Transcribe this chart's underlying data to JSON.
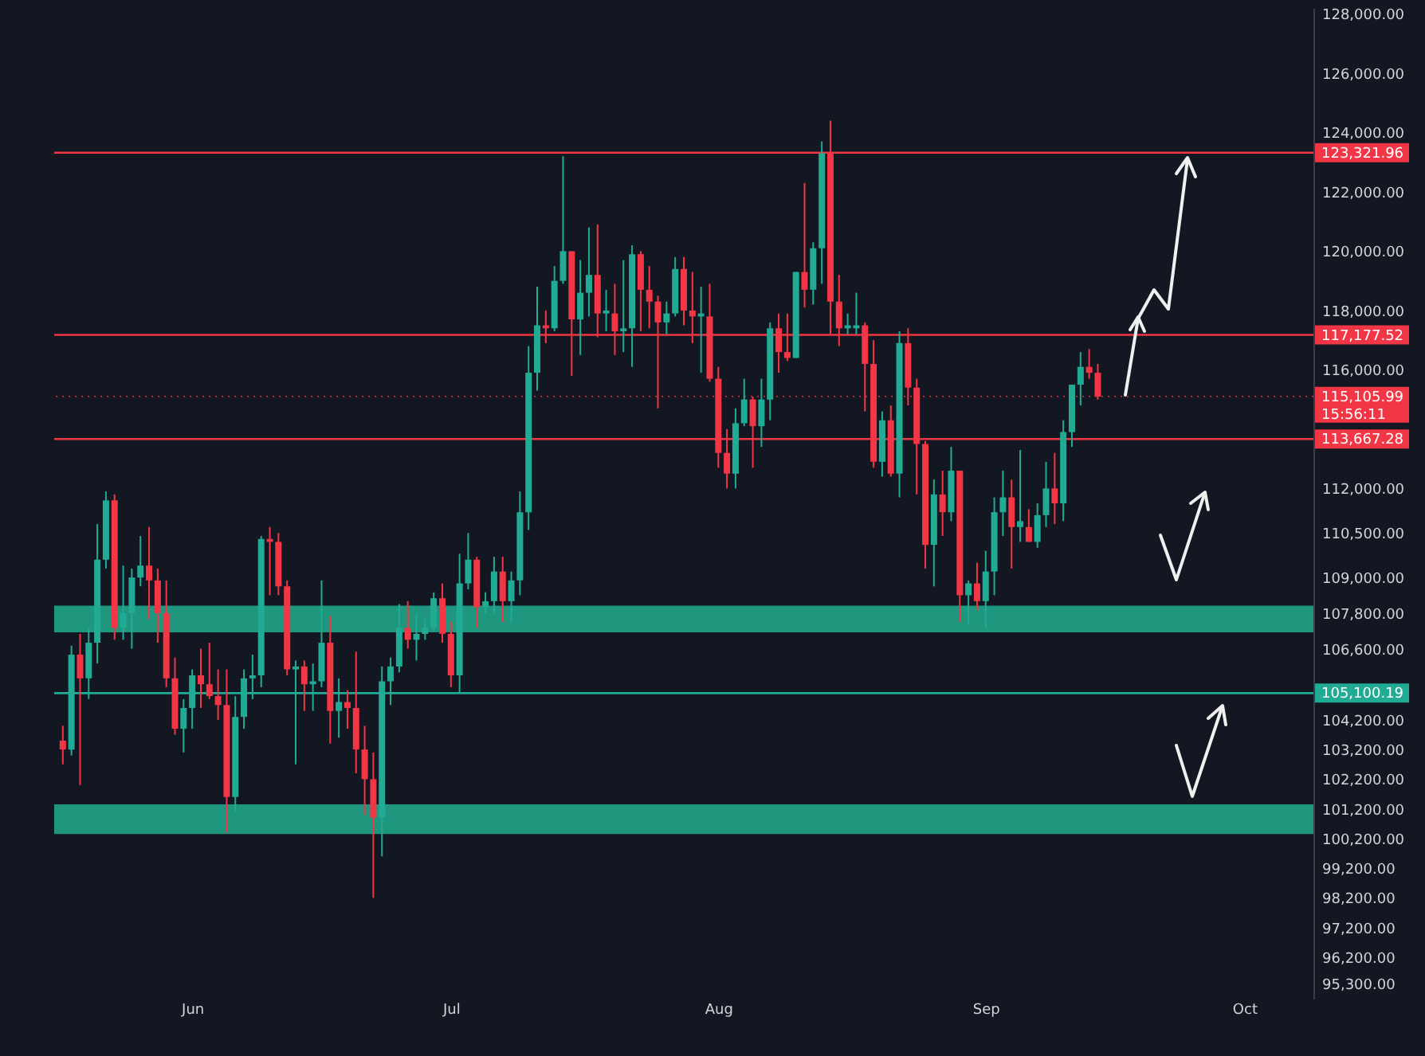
{
  "chart_data": {
    "type": "candlestick",
    "x": [
      "--05-17",
      "--05-18",
      "--05-19",
      "--05-20",
      "--05-21",
      "--05-22",
      "--05-23",
      "--05-24",
      "--05-25",
      "--05-26",
      "--05-27",
      "--05-28",
      "--05-29",
      "--05-30",
      "--05-31",
      "--06-01",
      "--06-02",
      "--06-03",
      "--06-04",
      "--06-05",
      "--06-06",
      "--06-07",
      "--06-08",
      "--06-09",
      "--06-10",
      "--06-11",
      "--06-12",
      "--06-13",
      "--06-14",
      "--06-15",
      "--06-16",
      "--06-17",
      "--06-18",
      "--06-19",
      "--06-20",
      "--06-21",
      "--06-22",
      "--06-23",
      "--06-24",
      "--06-25",
      "--06-26",
      "--06-27",
      "--06-28",
      "--06-29",
      "--06-30",
      "--07-01",
      "--07-02",
      "--07-03",
      "--07-04",
      "--07-05",
      "--07-06",
      "--07-07",
      "--07-08",
      "--07-09",
      "--07-10",
      "--07-11",
      "--07-12",
      "--07-13",
      "--07-14",
      "--07-15",
      "--07-16",
      "--07-17",
      "--07-18",
      "--07-19",
      "--07-20",
      "--07-21",
      "--07-22",
      "--07-23",
      "--07-24",
      "--07-25",
      "--07-26",
      "--07-27",
      "--07-28",
      "--07-29",
      "--07-30",
      "--07-31",
      "--08-01",
      "--08-02",
      "--08-03",
      "--08-04",
      "--08-05",
      "--08-06",
      "--08-07",
      "--08-08",
      "--08-09",
      "--08-10",
      "--08-11",
      "--08-12",
      "--08-13",
      "--08-14",
      "--08-15",
      "--08-16",
      "--08-17",
      "--08-18",
      "--08-19",
      "--08-20",
      "--08-21",
      "--08-22",
      "--08-23",
      "--08-24",
      "--08-25",
      "--08-26",
      "--08-27",
      "--08-28",
      "--08-29",
      "--08-30",
      "--08-31",
      "--09-01",
      "--09-02",
      "--09-03",
      "--09-04",
      "--09-05",
      "--09-06",
      "--09-07",
      "--09-08",
      "--09-09",
      "--09-10",
      "--09-11",
      "--09-12",
      "--09-13",
      "--09-14"
    ],
    "ohlc": [
      [
        103500,
        104000,
        102700,
        103200
      ],
      [
        103200,
        106700,
        103000,
        106400
      ],
      [
        106400,
        107100,
        102000,
        105600
      ],
      [
        105600,
        107300,
        104900,
        106800
      ],
      [
        106800,
        110800,
        106100,
        109600
      ],
      [
        109600,
        111900,
        109300,
        111600
      ],
      [
        111600,
        111800,
        106900,
        107300
      ],
      [
        107300,
        109400,
        106900,
        107800
      ],
      [
        107800,
        109300,
        106600,
        109000
      ],
      [
        109000,
        110400,
        108700,
        109400
      ],
      [
        109400,
        110700,
        107600,
        108900
      ],
      [
        108900,
        109300,
        106800,
        107800
      ],
      [
        107800,
        108900,
        105300,
        105600
      ],
      [
        105600,
        106300,
        103700,
        103900
      ],
      [
        103900,
        104900,
        103100,
        104600
      ],
      [
        104600,
        105900,
        103900,
        105700
      ],
      [
        105700,
        106600,
        104600,
        105400
      ],
      [
        105400,
        106800,
        104900,
        105000
      ],
      [
        105000,
        105900,
        104200,
        104700
      ],
      [
        104700,
        105900,
        100400,
        101600
      ],
      [
        101600,
        105000,
        101100,
        104300
      ],
      [
        104300,
        105900,
        103900,
        105600
      ],
      [
        105600,
        106400,
        104900,
        105700
      ],
      [
        105700,
        110400,
        105300,
        110300
      ],
      [
        110300,
        110700,
        108400,
        110200
      ],
      [
        110200,
        110500,
        108400,
        108700
      ],
      [
        108700,
        108900,
        105700,
        105900
      ],
      [
        105900,
        106200,
        102700,
        106000
      ],
      [
        106000,
        106200,
        104500,
        105400
      ],
      [
        105400,
        106100,
        104500,
        105500
      ],
      [
        105500,
        108900,
        105300,
        106800
      ],
      [
        106800,
        107700,
        103400,
        104500
      ],
      [
        104500,
        105600,
        103600,
        104800
      ],
      [
        104800,
        105200,
        103900,
        104600
      ],
      [
        104600,
        106500,
        102400,
        103200
      ],
      [
        103200,
        104000,
        101000,
        102200
      ],
      [
        102200,
        103100,
        98200,
        100900
      ],
      [
        100900,
        106000,
        99600,
        105500
      ],
      [
        105500,
        106300,
        104700,
        106000
      ],
      [
        106000,
        108100,
        105800,
        107300
      ],
      [
        107300,
        108200,
        106600,
        106900
      ],
      [
        106900,
        107800,
        106200,
        107100
      ],
      [
        107100,
        107600,
        106900,
        107300
      ],
      [
        107300,
        108500,
        107200,
        108300
      ],
      [
        108300,
        108800,
        106800,
        107100
      ],
      [
        107100,
        107500,
        105300,
        105700
      ],
      [
        105700,
        109800,
        105100,
        108800
      ],
      [
        108800,
        110500,
        108600,
        109600
      ],
      [
        109600,
        109700,
        107300,
        108000
      ],
      [
        108000,
        108500,
        107800,
        108200
      ],
      [
        108200,
        109700,
        107800,
        109200
      ],
      [
        109200,
        109700,
        107500,
        108200
      ],
      [
        108200,
        109200,
        107500,
        108900
      ],
      [
        108900,
        111900,
        108400,
        111200
      ],
      [
        111200,
        116800,
        110600,
        115900
      ],
      [
        115900,
        118800,
        115300,
        117500
      ],
      [
        117500,
        118000,
        116900,
        117400
      ],
      [
        117400,
        119500,
        117300,
        119000
      ],
      [
        119000,
        123200,
        118900,
        120000
      ],
      [
        120000,
        120000,
        115800,
        117700
      ],
      [
        117700,
        119700,
        116500,
        118600
      ],
      [
        118600,
        120800,
        117800,
        119200
      ],
      [
        119200,
        120900,
        117100,
        117900
      ],
      [
        117900,
        118700,
        117300,
        118000
      ],
      [
        117900,
        118900,
        116500,
        117300
      ],
      [
        117300,
        119700,
        116600,
        117400
      ],
      [
        117400,
        120200,
        116100,
        119900
      ],
      [
        119900,
        120000,
        117300,
        118700
      ],
      [
        118700,
        119500,
        117400,
        118300
      ],
      [
        118300,
        118500,
        114700,
        117600
      ],
      [
        117600,
        118300,
        117200,
        117900
      ],
      [
        117900,
        119800,
        117800,
        119400
      ],
      [
        119400,
        119800,
        117500,
        118000
      ],
      [
        118000,
        119300,
        116900,
        117800
      ],
      [
        117800,
        118800,
        115900,
        117900
      ],
      [
        117800,
        118900,
        115600,
        115700
      ],
      [
        115700,
        116100,
        112700,
        113200
      ],
      [
        113200,
        114000,
        112000,
        112500
      ],
      [
        112500,
        114700,
        112000,
        114200
      ],
      [
        114200,
        115700,
        114100,
        115000
      ],
      [
        115000,
        115100,
        112700,
        114100
      ],
      [
        114100,
        115700,
        113400,
        115000
      ],
      [
        115000,
        117600,
        114300,
        117400
      ],
      [
        117400,
        117900,
        115900,
        116600
      ],
      [
        116600,
        117900,
        116300,
        116400
      ],
      [
        116400,
        119300,
        116400,
        119300
      ],
      [
        119300,
        122300,
        118100,
        118700
      ],
      [
        118700,
        120300,
        118200,
        120100
      ],
      [
        120100,
        123700,
        118900,
        123300
      ],
      [
        123300,
        124400,
        117200,
        118300
      ],
      [
        118300,
        119200,
        116800,
        117400
      ],
      [
        117400,
        117900,
        117200,
        117500
      ],
      [
        117400,
        118600,
        117200,
        117500
      ],
      [
        117500,
        117600,
        114600,
        116200
      ],
      [
        116200,
        117000,
        112700,
        112900
      ],
      [
        112900,
        114600,
        112400,
        114300
      ],
      [
        114300,
        114800,
        112400,
        112500
      ],
      [
        112500,
        117300,
        111700,
        116900
      ],
      [
        116900,
        117400,
        114800,
        115400
      ],
      [
        115400,
        115700,
        111800,
        113500
      ],
      [
        113500,
        113600,
        109300,
        110100
      ],
      [
        110100,
        112300,
        108700,
        111800
      ],
      [
        111800,
        112600,
        110400,
        111200
      ],
      [
        111200,
        113400,
        110900,
        112600
      ],
      [
        112600,
        112600,
        107500,
        108400
      ],
      [
        108400,
        108900,
        107400,
        108800
      ],
      [
        108800,
        109500,
        107900,
        108200
      ],
      [
        108200,
        109900,
        107300,
        109200
      ],
      [
        109200,
        111700,
        108400,
        111200
      ],
      [
        111200,
        112600,
        110400,
        111700
      ],
      [
        111700,
        112300,
        109300,
        110700
      ],
      [
        110700,
        113300,
        110200,
        110900
      ],
      [
        110700,
        111300,
        110200,
        110200
      ],
      [
        110200,
        111500,
        110000,
        111100
      ],
      [
        111100,
        112900,
        110700,
        112000
      ],
      [
        112000,
        113200,
        110800,
        111500
      ],
      [
        111500,
        114300,
        110900,
        113900
      ],
      [
        113900,
        115500,
        113400,
        115500
      ],
      [
        115500,
        116600,
        114800,
        116100
      ],
      [
        116100,
        116700,
        115700,
        115900
      ],
      [
        115900,
        116200,
        115000,
        115100
      ]
    ],
    "colors": [
      "#f23645",
      "#22ab94",
      "#f23645",
      "#22ab94",
      "#22ab94",
      "#22ab94",
      "#f23645",
      "#22ab94",
      "#22ab94",
      "#22ab94",
      "#f23645",
      "#f23645",
      "#f23645",
      "#f23645",
      "#22ab94",
      "#22ab94",
      "#f23645",
      "#f23645",
      "#f23645",
      "#f23645",
      "#22ab94",
      "#22ab94",
      "#22ab94",
      "#22ab94",
      "#f23645",
      "#f23645",
      "#f23645",
      "#22ab94",
      "#f23645",
      "#22ab94",
      "#22ab94",
      "#f23645",
      "#22ab94",
      "#f23645",
      "#f23645",
      "#f23645",
      "#f23645",
      "#22ab94",
      "#22ab94",
      "#22ab94",
      "#f23645",
      "#22ab94",
      "#22ab94",
      "#22ab94",
      "#f23645",
      "#f23645",
      "#22ab94",
      "#22ab94",
      "#f23645",
      "#22ab94",
      "#22ab94",
      "#f23645",
      "#22ab94",
      "#22ab94",
      "#22ab94",
      "#22ab94",
      "#f23645",
      "#22ab94",
      "#22ab94",
      "#f23645",
      "#22ab94",
      "#22ab94",
      "#f23645",
      "#22ab94",
      "#f23645",
      "#22ab94",
      "#22ab94",
      "#f23645",
      "#f23645",
      "#f23645",
      "#22ab94",
      "#22ab94",
      "#f23645",
      "#f23645",
      "#22ab94",
      "#f23645",
      "#f23645",
      "#f23645",
      "#22ab94",
      "#22ab94",
      "#f23645",
      "#22ab94",
      "#22ab94",
      "#f23645",
      "#f23645",
      "#22ab94",
      "#f23645",
      "#22ab94",
      "#22ab94",
      "#f23645",
      "#f23645",
      "#22ab94",
      "#22ab94",
      "#f23645",
      "#f23645",
      "#22ab94",
      "#f23645",
      "#22ab94",
      "#f23645",
      "#f23645",
      "#f23645",
      "#22ab94",
      "#f23645",
      "#22ab94",
      "#f23645",
      "#22ab94",
      "#f23645",
      "#22ab94",
      "#22ab94",
      "#22ab94",
      "#f23645",
      "#22ab94",
      "#f23645",
      "#22ab94",
      "#22ab94",
      "#f23645",
      "#22ab94",
      "#22ab94",
      "#22ab94",
      "#f23645",
      "#f23645"
    ],
    "xlim": [
      "--05-16",
      "--10-09"
    ],
    "xticks": [
      {
        "value": "--06-01",
        "label": "Jun"
      },
      {
        "value": "--07-01",
        "label": "Jul"
      },
      {
        "value": "--08-01",
        "label": "Aug"
      },
      {
        "value": "--09-01",
        "label": "Sep"
      },
      {
        "value": "--10-01",
        "label": "Oct"
      }
    ],
    "ylim": [
      94800,
      128200
    ],
    "yticks": [
      {
        "value": 128000,
        "label": "128,000.00"
      },
      {
        "value": 126000,
        "label": "126,000.00"
      },
      {
        "value": 124000,
        "label": "124,000.00"
      },
      {
        "value": 122000,
        "label": "122,000.00"
      },
      {
        "value": 120000,
        "label": "120,000.00"
      },
      {
        "value": 118000,
        "label": "118,000.00"
      },
      {
        "value": 116000,
        "label": "116,000.00"
      },
      {
        "value": 112000,
        "label": "112,000.00"
      },
      {
        "value": 110500,
        "label": "110,500.00"
      },
      {
        "value": 109000,
        "label": "109,000.00"
      },
      {
        "value": 107800,
        "label": "107,800.00"
      },
      {
        "value": 106600,
        "label": "106,600.00"
      },
      {
        "value": 104200,
        "label": "104,200.00"
      },
      {
        "value": 103200,
        "label": "103,200.00"
      },
      {
        "value": 102200,
        "label": "102,200.00"
      },
      {
        "value": 101200,
        "label": "101,200.00"
      },
      {
        "value": 100200,
        "label": "100,200.00"
      },
      {
        "value": 99200,
        "label": "99,200.00"
      },
      {
        "value": 98200,
        "label": "98,200.00"
      },
      {
        "value": 97200,
        "label": "97,200.00"
      },
      {
        "value": 96200,
        "label": "96,200.00"
      },
      {
        "value": 95300,
        "label": "95,300.00"
      }
    ],
    "ref_lines": [
      {
        "axis": "y",
        "value": 123321.96,
        "label": "123,321.96",
        "color": "#f23645",
        "line_style": "solid"
      },
      {
        "axis": "y",
        "value": 117177.52,
        "label": "117,177.52",
        "color": "#f23645",
        "line_style": "solid"
      },
      {
        "axis": "y",
        "value": 115105.99,
        "label": "115,105.99",
        "color": "#f23645",
        "line_style": "dotted"
      },
      {
        "axis": "y",
        "value": 113667.28,
        "label": "113,667.28",
        "color": "#f23645",
        "line_style": "solid"
      },
      {
        "axis": "y",
        "value": 105100.19,
        "label": "105,100.19",
        "color": "#22ab94",
        "line_style": "solid"
      }
    ],
    "bands": [
      {
        "axis": "y",
        "from": 107150,
        "to": 108050,
        "color": "#1f9e84"
      },
      {
        "axis": "y",
        "from": 100350,
        "to": 101350,
        "color": "#1f9e84"
      }
    ],
    "annotations": [
      "15:56:11"
    ]
  }
}
